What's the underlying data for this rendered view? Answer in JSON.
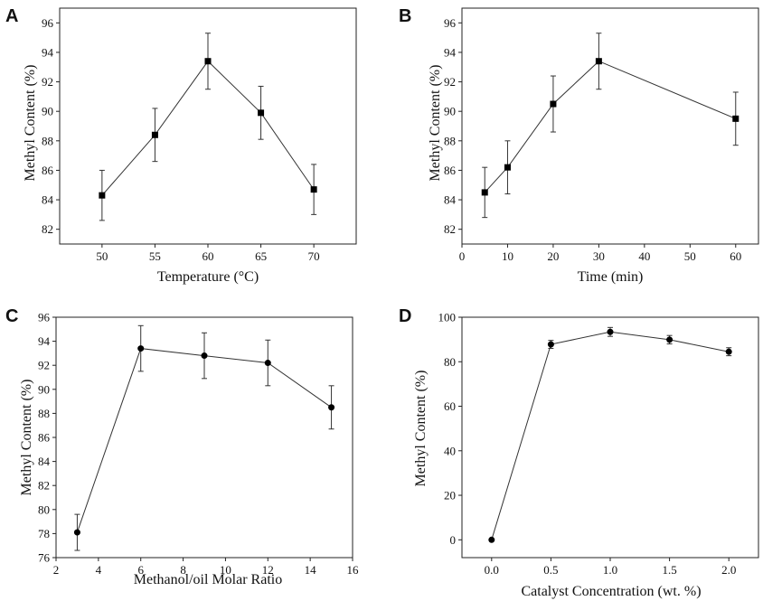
{
  "chart_data": [
    {
      "type": "line",
      "panel": "A",
      "xlabel": "Temperature (°C)",
      "ylabel": "Methyl Content (%)",
      "xlim": [
        46,
        74
      ],
      "ylim": [
        81,
        97
      ],
      "xticks": [
        50,
        55,
        60,
        65,
        70
      ],
      "yticks": [
        82,
        84,
        86,
        88,
        90,
        92,
        94,
        96
      ],
      "marker": "square",
      "x": [
        50,
        55,
        60,
        65,
        70
      ],
      "y": [
        84.3,
        88.4,
        93.4,
        89.9,
        84.7
      ],
      "err": [
        1.7,
        1.8,
        1.9,
        1.8,
        1.7
      ]
    },
    {
      "type": "line",
      "panel": "B",
      "xlabel": "Time (min)",
      "ylabel": "Methyl Content (%)",
      "xlim": [
        0,
        65
      ],
      "ylim": [
        81,
        97
      ],
      "xticks": [
        0,
        10,
        20,
        30,
        40,
        50,
        60
      ],
      "yticks": [
        82,
        84,
        86,
        88,
        90,
        92,
        94,
        96
      ],
      "marker": "square",
      "x": [
        5,
        10,
        20,
        30,
        60
      ],
      "y": [
        84.5,
        86.2,
        90.5,
        93.4,
        89.5
      ],
      "err": [
        1.7,
        1.8,
        1.9,
        1.9,
        1.8
      ]
    },
    {
      "type": "line",
      "panel": "C",
      "xlabel": "Methanol/oil Molar Ratio",
      "ylabel": "Methyl Content (%)",
      "xlim": [
        2,
        16
      ],
      "ylim": [
        76,
        96
      ],
      "xticks": [
        2,
        4,
        6,
        8,
        10,
        12,
        14,
        16
      ],
      "yticks": [
        76,
        78,
        80,
        82,
        84,
        86,
        88,
        90,
        92,
        94,
        96
      ],
      "marker": "circle",
      "x": [
        3,
        6,
        9,
        12,
        15
      ],
      "y": [
        78.1,
        93.4,
        92.8,
        92.2,
        88.5
      ],
      "err": [
        1.5,
        1.9,
        1.9,
        1.9,
        1.8
      ]
    },
    {
      "type": "line",
      "panel": "D",
      "xlabel": "Catalyst Concentration (wt. %)",
      "ylabel": "Methyl Content (%)",
      "xlim": [
        -0.25,
        2.25
      ],
      "ylim": [
        -8,
        100
      ],
      "xticks": [
        0.0,
        0.5,
        1.0,
        1.5,
        2.0
      ],
      "xtick_labels": [
        "0.0",
        "0.5",
        "1.0",
        "1.5",
        "2.0"
      ],
      "yticks": [
        0,
        20,
        40,
        60,
        80,
        100
      ],
      "marker": "circle",
      "x": [
        0.0,
        0.5,
        1.0,
        1.5,
        2.0
      ],
      "y": [
        0,
        87.8,
        93.4,
        89.9,
        84.5
      ],
      "err": [
        0,
        1.8,
        2.0,
        1.9,
        1.8
      ]
    }
  ]
}
